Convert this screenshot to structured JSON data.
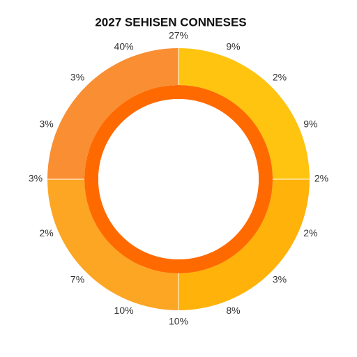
{
  "chart_data": {
    "type": "donut",
    "title": "2027 SEHISEN CONNESES",
    "categories": [
      null,
      null,
      null,
      null
    ],
    "values": [
      25,
      25,
      25,
      25
    ],
    "colors": [
      "#ffc40f",
      "#ffb20a",
      "#fca624",
      "#f98f32"
    ],
    "ring_color": "#ff6a00",
    "annotations": [
      "27%",
      "9%",
      "2%",
      "9%",
      "2%",
      "2%",
      "3%",
      "8%",
      "10%",
      "10%",
      "7%",
      "2%",
      "3%",
      "3%",
      "3%",
      "40%"
    ]
  }
}
